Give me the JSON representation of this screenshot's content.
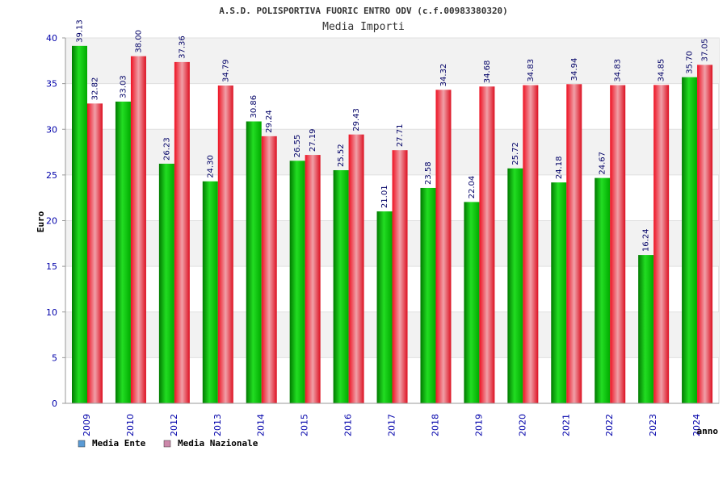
{
  "chart_data": {
    "type": "bar",
    "title": "A.S.D. POLISPORTIVA FUORIC ENTRO ODV (c.f.00983380320)",
    "subtitle": "Media Importi",
    "xlabel": "anno",
    "ylabel": "Euro",
    "ylim": [
      0,
      40
    ],
    "yticks": [
      0,
      5,
      10,
      15,
      20,
      25,
      30,
      35,
      40
    ],
    "grid": true,
    "legend_position": "bottom-left",
    "categories": [
      "2009",
      "2010",
      "2012",
      "2013",
      "2014",
      "2015",
      "2016",
      "2017",
      "2018",
      "2019",
      "2020",
      "2021",
      "2022",
      "2023",
      "2024"
    ],
    "series": [
      {
        "name": "Media Ente",
        "color": "#00aa00",
        "legend_color": "#5b9bd5",
        "values": [
          39.13,
          33.03,
          26.23,
          24.3,
          30.86,
          26.55,
          25.52,
          21.01,
          23.58,
          22.04,
          25.72,
          24.18,
          24.67,
          16.24,
          35.7
        ],
        "labels": [
          "39.13",
          "33.03",
          "26.23",
          "24.30",
          "30.86",
          "26.55",
          "25.52",
          "21.01",
          "23.58",
          "22.04",
          "25.72",
          "24.18",
          "24.67",
          "16.24",
          "35.70"
        ]
      },
      {
        "name": "Media Nazionale",
        "color": "#ee1122",
        "legend_color": "#cc88aa",
        "values": [
          32.82,
          38.0,
          37.36,
          34.79,
          29.24,
          27.19,
          29.43,
          27.71,
          34.32,
          34.68,
          34.83,
          34.94,
          34.83,
          34.85,
          37.05
        ],
        "labels": [
          "32.82",
          "38.00",
          "37.36",
          "34.79",
          "29.24",
          "27.19",
          "29.43",
          "27.71",
          "34.32",
          "34.68",
          "34.83",
          "34.94",
          "34.83",
          "34.85",
          "37.05"
        ]
      }
    ]
  }
}
